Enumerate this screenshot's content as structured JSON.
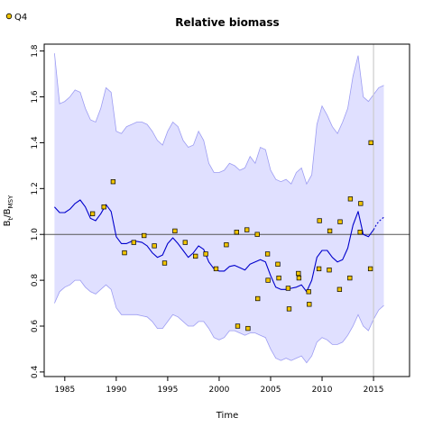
{
  "chart_data": {
    "type": "line",
    "title": "Relative biomass",
    "xlabel": "Time",
    "ylabel_main": "B",
    "ylabel_sub": "t",
    "ylabel_sep": "/B",
    "ylabel_sub2": "MSY",
    "xlim": [
      1983,
      2018.5
    ],
    "ylim": [
      0.38,
      1.83
    ],
    "xticks": [
      1985,
      1990,
      1995,
      2000,
      2005,
      2010,
      2015
    ],
    "yticks": [
      0.4,
      0.6,
      0.8,
      1.0,
      1.2,
      1.4,
      1.6,
      1.8
    ],
    "xtick_labels": [
      "1985",
      "1990",
      "1995",
      "2000",
      "2005",
      "2010",
      "2015"
    ],
    "ytick_labels": [
      "0.4",
      "0.6",
      "0.8",
      "1.0",
      "1.2",
      "1.4",
      "1.6",
      "1.8"
    ],
    "reference_line_y": 1.0,
    "last_data_year": 2015,
    "legend": {
      "label": "Q4",
      "placement": "top-left"
    },
    "colors": {
      "band_fill": "#e0e0ff",
      "band_edge": "#9c9cf2",
      "estimate_line": "#0000cc",
      "forecast_line": "#0000cc",
      "points_fill": "#f0c400",
      "points_edge": "#000000",
      "reference_line": "#555555",
      "vertical_line": "#cccccc"
    },
    "series": [
      {
        "role": "estimate",
        "x": [
          1984,
          1984.5,
          1985,
          1985.5,
          1986,
          1986.5,
          1987,
          1987.5,
          1988,
          1988.5,
          1989,
          1989.5,
          1990,
          1990.5,
          1991,
          1991.5,
          1992,
          1992.5,
          1993,
          1993.5,
          1994,
          1994.5,
          1995,
          1995.5,
          1996,
          1996.5,
          1997,
          1997.5,
          1998,
          1998.5,
          1999,
          1999.5,
          2000,
          2000.5,
          2001,
          2001.5,
          2002,
          2002.5,
          2003,
          2003.5,
          2004,
          2004.5,
          2005,
          2005.5,
          2006,
          2006.5,
          2007,
          2007.5,
          2008,
          2008.5,
          2009,
          2009.5,
          2010,
          2010.5,
          2011,
          2011.5,
          2012,
          2012.5,
          2013,
          2013.5,
          2014,
          2014.5,
          2015
        ],
        "y": [
          1.12,
          1.095,
          1.095,
          1.11,
          1.135,
          1.15,
          1.12,
          1.07,
          1.06,
          1.09,
          1.13,
          1.1,
          0.99,
          0.96,
          0.96,
          0.97,
          0.97,
          0.965,
          0.95,
          0.92,
          0.9,
          0.91,
          0.96,
          0.985,
          0.96,
          0.93,
          0.9,
          0.92,
          0.95,
          0.935,
          0.88,
          0.85,
          0.84,
          0.84,
          0.86,
          0.865,
          0.855,
          0.845,
          0.87,
          0.88,
          0.89,
          0.88,
          0.82,
          0.77,
          0.76,
          0.76,
          0.765,
          0.77,
          0.78,
          0.75,
          0.8,
          0.9,
          0.93,
          0.93,
          0.9,
          0.88,
          0.89,
          0.94,
          1.04,
          1.1,
          1.0,
          0.99,
          1.02
        ]
      },
      {
        "role": "forecast",
        "x": [
          2015,
          2015.3,
          2015.6,
          2016
        ],
        "y": [
          1.02,
          1.045,
          1.06,
          1.075
        ]
      },
      {
        "role": "band_upper",
        "x": [
          1984,
          1984.5,
          1985,
          1985.5,
          1986,
          1986.5,
          1987,
          1987.5,
          1988,
          1988.5,
          1989,
          1989.5,
          1990,
          1990.5,
          1991,
          1991.5,
          1992,
          1992.5,
          1993,
          1993.5,
          1994,
          1994.5,
          1995,
          1995.5,
          1996,
          1996.5,
          1997,
          1997.5,
          1998,
          1998.5,
          1999,
          1999.5,
          2000,
          2000.5,
          2001,
          2001.5,
          2002,
          2002.5,
          2003,
          2003.5,
          2004,
          2004.5,
          2005,
          2005.5,
          2006,
          2006.5,
          2007,
          2007.5,
          2008,
          2008.5,
          2009,
          2009.5,
          2010,
          2010.5,
          2011,
          2011.5,
          2012,
          2012.5,
          2013,
          2013.5,
          2014,
          2014.5,
          2015,
          2015.5,
          2016
        ],
        "y": [
          1.79,
          1.57,
          1.58,
          1.6,
          1.63,
          1.62,
          1.55,
          1.5,
          1.49,
          1.55,
          1.64,
          1.62,
          1.45,
          1.44,
          1.47,
          1.48,
          1.49,
          1.49,
          1.48,
          1.45,
          1.41,
          1.39,
          1.45,
          1.49,
          1.47,
          1.41,
          1.38,
          1.39,
          1.45,
          1.41,
          1.31,
          1.27,
          1.27,
          1.28,
          1.31,
          1.3,
          1.28,
          1.29,
          1.34,
          1.31,
          1.38,
          1.37,
          1.28,
          1.24,
          1.23,
          1.24,
          1.22,
          1.27,
          1.29,
          1.22,
          1.26,
          1.48,
          1.56,
          1.52,
          1.47,
          1.44,
          1.49,
          1.55,
          1.69,
          1.78,
          1.6,
          1.58,
          1.61,
          1.64,
          1.65
        ]
      },
      {
        "role": "band_lower",
        "x": [
          1984,
          1984.5,
          1985,
          1985.5,
          1986,
          1986.5,
          1987,
          1987.5,
          1988,
          1988.5,
          1989,
          1989.5,
          1990,
          1990.5,
          1991,
          1991.5,
          1992,
          1992.5,
          1993,
          1993.5,
          1994,
          1994.5,
          1995,
          1995.5,
          1996,
          1996.5,
          1997,
          1997.5,
          1998,
          1998.5,
          1999,
          1999.5,
          2000,
          2000.5,
          2001,
          2001.5,
          2002,
          2002.5,
          2003,
          2003.5,
          2004,
          2004.5,
          2005,
          2005.5,
          2006,
          2006.5,
          2007,
          2007.5,
          2008,
          2008.5,
          2009,
          2009.5,
          2010,
          2010.5,
          2011,
          2011.5,
          2012,
          2012.5,
          2013,
          2013.5,
          2014,
          2014.5,
          2015,
          2015.5,
          2016
        ],
        "y": [
          0.7,
          0.75,
          0.77,
          0.78,
          0.8,
          0.8,
          0.77,
          0.75,
          0.74,
          0.76,
          0.78,
          0.76,
          0.68,
          0.65,
          0.65,
          0.65,
          0.65,
          0.645,
          0.64,
          0.62,
          0.59,
          0.59,
          0.62,
          0.65,
          0.64,
          0.62,
          0.6,
          0.6,
          0.62,
          0.62,
          0.59,
          0.55,
          0.54,
          0.55,
          0.58,
          0.58,
          0.57,
          0.56,
          0.57,
          0.57,
          0.56,
          0.55,
          0.5,
          0.46,
          0.45,
          0.46,
          0.45,
          0.46,
          0.47,
          0.44,
          0.47,
          0.53,
          0.55,
          0.54,
          0.52,
          0.52,
          0.53,
          0.56,
          0.6,
          0.65,
          0.6,
          0.58,
          0.63,
          0.67,
          0.69
        ]
      },
      {
        "role": "index_points",
        "name": "Q4",
        "x": [
          1987.7,
          1988.8,
          1989.7,
          1990.8,
          1991.7,
          1992.7,
          1993.7,
          1994.7,
          1995.7,
          1996.7,
          1997.7,
          1998.7,
          1999.7,
          2000.7,
          2001.7,
          2001.8,
          2002.7,
          2002.8,
          2003.7,
          2003.75,
          2004.7,
          2004.75,
          2005.7,
          2005.8,
          2006.7,
          2006.8,
          2007.7,
          2007.75,
          2008.7,
          2008.75,
          2009.7,
          2009.75,
          2010.7,
          2010.75,
          2011.7,
          2011.75,
          2012.7,
          2012.75,
          2013.7,
          2013.75,
          2014.7,
          2014.75
        ],
        "y": [
          1.09,
          1.12,
          1.23,
          0.92,
          0.965,
          0.995,
          0.95,
          0.875,
          1.015,
          0.965,
          0.905,
          0.915,
          0.85,
          0.955,
          1.01,
          0.6,
          1.02,
          0.59,
          1.0,
          0.72,
          0.915,
          0.8,
          0.87,
          0.81,
          0.765,
          0.675,
          0.83,
          0.81,
          0.75,
          0.695,
          0.85,
          1.06,
          0.845,
          1.015,
          0.76,
          1.055,
          0.81,
          1.155,
          1.01,
          1.135,
          0.85,
          1.4
        ]
      }
    ]
  }
}
